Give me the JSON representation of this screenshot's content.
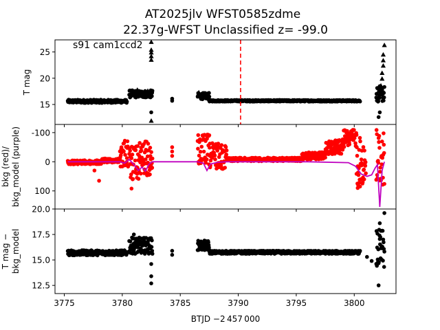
{
  "title_line1": "AT2025jlv  WFST0585zdme",
  "title_line2": "22.37g-WFST Unclassified z= -99.0",
  "colors": {
    "mag": "#000000",
    "bkg": "#ff0000",
    "model": "#bf00bf",
    "marker": "#ff0000"
  },
  "chart_data": [
    {
      "type": "scatter",
      "panel": "top",
      "ylabel": "T mag",
      "annotation": "s91 cam1ccd2",
      "xlim": [
        3774.2,
        3803.6
      ],
      "ylim": [
        27.3,
        11.2
      ],
      "yticks": [
        15,
        20,
        25
      ],
      "vline_x": 3790.2,
      "segments": [
        {
          "x0": 3775.3,
          "x1": 3780.4,
          "y": 15.6,
          "scatter": 0.3
        },
        {
          "x0": 3780.6,
          "x1": 3782.6,
          "y": 17.0,
          "scatter": 0.7
        },
        {
          "x0": 3786.5,
          "x1": 3787.5,
          "y": 16.6,
          "scatter": 0.6
        },
        {
          "x0": 3787.5,
          "x1": 3800.5,
          "y": 15.7,
          "scatter": 0.15
        },
        {
          "x0": 3801.9,
          "x1": 3802.6,
          "y": 17.0,
          "scatter": 1.5
        }
      ],
      "points": [
        {
          "x": 3782.5,
          "y": 11.9,
          "m": "triangle"
        },
        {
          "x": 3782.5,
          "y": 13.5,
          "m": "dot"
        },
        {
          "x": 3782.5,
          "y": 23.5,
          "m": "triangle"
        },
        {
          "x": 3782.5,
          "y": 24.2,
          "m": "triangle"
        },
        {
          "x": 3782.5,
          "y": 24.9,
          "m": "triangle"
        },
        {
          "x": 3782.5,
          "y": 25.4,
          "m": "triangle"
        },
        {
          "x": 3782.5,
          "y": 26.9,
          "m": "triangle"
        },
        {
          "x": 3784.3,
          "y": 15.7,
          "m": "dot"
        },
        {
          "x": 3784.3,
          "y": 16.1,
          "m": "dot"
        },
        {
          "x": 3802.1,
          "y": 12.6,
          "m": "dot"
        },
        {
          "x": 3802.2,
          "y": 13.5,
          "m": "dot"
        },
        {
          "x": 3802.3,
          "y": 18.6,
          "m": "triangle"
        },
        {
          "x": 3802.4,
          "y": 19.9,
          "m": "triangle"
        },
        {
          "x": 3802.4,
          "y": 21.0,
          "m": "triangle"
        },
        {
          "x": 3802.5,
          "y": 22.4,
          "m": "triangle"
        },
        {
          "x": 3802.5,
          "y": 23.4,
          "m": "triangle"
        },
        {
          "x": 3802.5,
          "y": 24.5,
          "m": "triangle"
        },
        {
          "x": 3802.6,
          "y": 26.3,
          "m": "triangle"
        },
        {
          "x": 3782.2,
          "y": 17.6,
          "m": "triangle"
        },
        {
          "x": 3781.3,
          "y": 17.8,
          "m": "triangle"
        },
        {
          "x": 3780.9,
          "y": 17.2,
          "m": "triangle"
        },
        {
          "x": 3786.6,
          "y": 17.3,
          "m": "triangle"
        },
        {
          "x": 3802.3,
          "y": 16.9,
          "m": "triangle"
        }
      ]
    },
    {
      "type": "scatter+line",
      "panel": "middle",
      "ylabel_line1": "bkg (red)/",
      "ylabel_line2": "bkg_model (purple)",
      "xlim": [
        3774.2,
        3803.6
      ],
      "ylim": [
        -128,
        162
      ],
      "yticks": [
        -100,
        0,
        100
      ],
      "model_line": [
        [
          3775.3,
          0
        ],
        [
          3779.8,
          0
        ],
        [
          3780.2,
          5
        ],
        [
          3780.6,
          -8
        ],
        [
          3781.0,
          10
        ],
        [
          3781.4,
          30
        ],
        [
          3781.7,
          18
        ],
        [
          3782.0,
          32
        ],
        [
          3782.3,
          8
        ],
        [
          3782.6,
          0
        ],
        [
          3786.5,
          0
        ],
        [
          3787.0,
          5
        ],
        [
          3787.3,
          30
        ],
        [
          3787.6,
          8
        ],
        [
          3788.2,
          2
        ],
        [
          3789.0,
          0
        ],
        [
          3796.0,
          0
        ],
        [
          3799.5,
          3
        ],
        [
          3800.1,
          15
        ],
        [
          3800.6,
          42
        ],
        [
          3801.1,
          50
        ],
        [
          3801.5,
          45
        ],
        [
          3801.8,
          22
        ],
        [
          3802.0,
          10
        ],
        [
          3802.2,
          155
        ],
        [
          3802.4,
          30
        ],
        [
          3802.6,
          0
        ]
      ],
      "segments": [
        {
          "x0": 3775.3,
          "x1": 3778.2,
          "base": 2,
          "spread": 14
        },
        {
          "x0": 3778.2,
          "x1": 3779.8,
          "base": -4,
          "spread": 14
        },
        {
          "x0": 3779.8,
          "x1": 3780.5,
          "base": -30,
          "spread": 100
        },
        {
          "x0": 3780.6,
          "x1": 3781.5,
          "base": 5,
          "spread": 120
        },
        {
          "x0": 3781.5,
          "x1": 3782.6,
          "base": -10,
          "spread": 120
        },
        {
          "x0": 3786.5,
          "x1": 3787.5,
          "base": -40,
          "spread": 110
        },
        {
          "x0": 3787.5,
          "x1": 3789.0,
          "base": -20,
          "spread": 90
        },
        {
          "x0": 3789.0,
          "x1": 3795.5,
          "base": -8,
          "spread": 12
        },
        {
          "x0": 3795.5,
          "x1": 3797.5,
          "base": -20,
          "spread": 25
        },
        {
          "x0": 3797.5,
          "x1": 3799.0,
          "base": -50,
          "spread": 50
        },
        {
          "x0": 3799.0,
          "x1": 3800.2,
          "base": -80,
          "spread": 60
        },
        {
          "x0": 3800.2,
          "x1": 3801.0,
          "base": 0,
          "spread": 170
        },
        {
          "x0": 3801.9,
          "x1": 3802.6,
          "base": -10,
          "spread": 220
        }
      ],
      "points": [
        {
          "x": 3784.3,
          "y": -20
        },
        {
          "x": 3784.3,
          "y": -35
        },
        {
          "x": 3784.3,
          "y": -50
        },
        {
          "x": 3778.0,
          "y": 65
        },
        {
          "x": 3777.6,
          "y": 30
        },
        {
          "x": 3780.8,
          "y": 92
        },
        {
          "x": 3800.3,
          "y": 90
        },
        {
          "x": 3800.5,
          "y": 85
        },
        {
          "x": 3782.3,
          "y": 45
        }
      ]
    },
    {
      "type": "scatter",
      "panel": "bottom",
      "ylabel_line1": "T mag −",
      "ylabel_line2": "bkg_model",
      "xlabel": "BTJD −2 457 000",
      "xlim": [
        3774.2,
        3803.6
      ],
      "xticks": [
        3775,
        3780,
        3785,
        3790,
        3795,
        3800
      ],
      "ylim": [
        20.0,
        11.7
      ],
      "yticks": [
        12.5,
        15.0,
        17.5,
        20.0
      ],
      "segments": [
        {
          "x0": 3775.3,
          "x1": 3780.4,
          "y": 15.7,
          "scatter": 0.25
        },
        {
          "x0": 3780.6,
          "x1": 3782.6,
          "y": 16.4,
          "scatter": 0.8
        },
        {
          "x0": 3786.5,
          "x1": 3787.5,
          "y": 16.4,
          "scatter": 0.5
        },
        {
          "x0": 3787.5,
          "x1": 3800.5,
          "y": 15.75,
          "scatter": 0.15
        },
        {
          "x0": 3801.9,
          "x1": 3802.6,
          "y": 16.0,
          "scatter": 2.0
        }
      ],
      "points": [
        {
          "x": 3782.5,
          "y": 12.7
        },
        {
          "x": 3782.5,
          "y": 13.4
        },
        {
          "x": 3782.5,
          "y": 14.6
        },
        {
          "x": 3784.3,
          "y": 15.5
        },
        {
          "x": 3784.3,
          "y": 15.9
        },
        {
          "x": 3801.5,
          "y": 14.9
        },
        {
          "x": 3801.1,
          "y": 15.3
        },
        {
          "x": 3802.1,
          "y": 12.5
        },
        {
          "x": 3802.6,
          "y": 19.6
        },
        {
          "x": 3802.2,
          "y": 18.6
        },
        {
          "x": 3781.0,
          "y": 17.5
        },
        {
          "x": 3780.9,
          "y": 17.1
        }
      ]
    }
  ]
}
